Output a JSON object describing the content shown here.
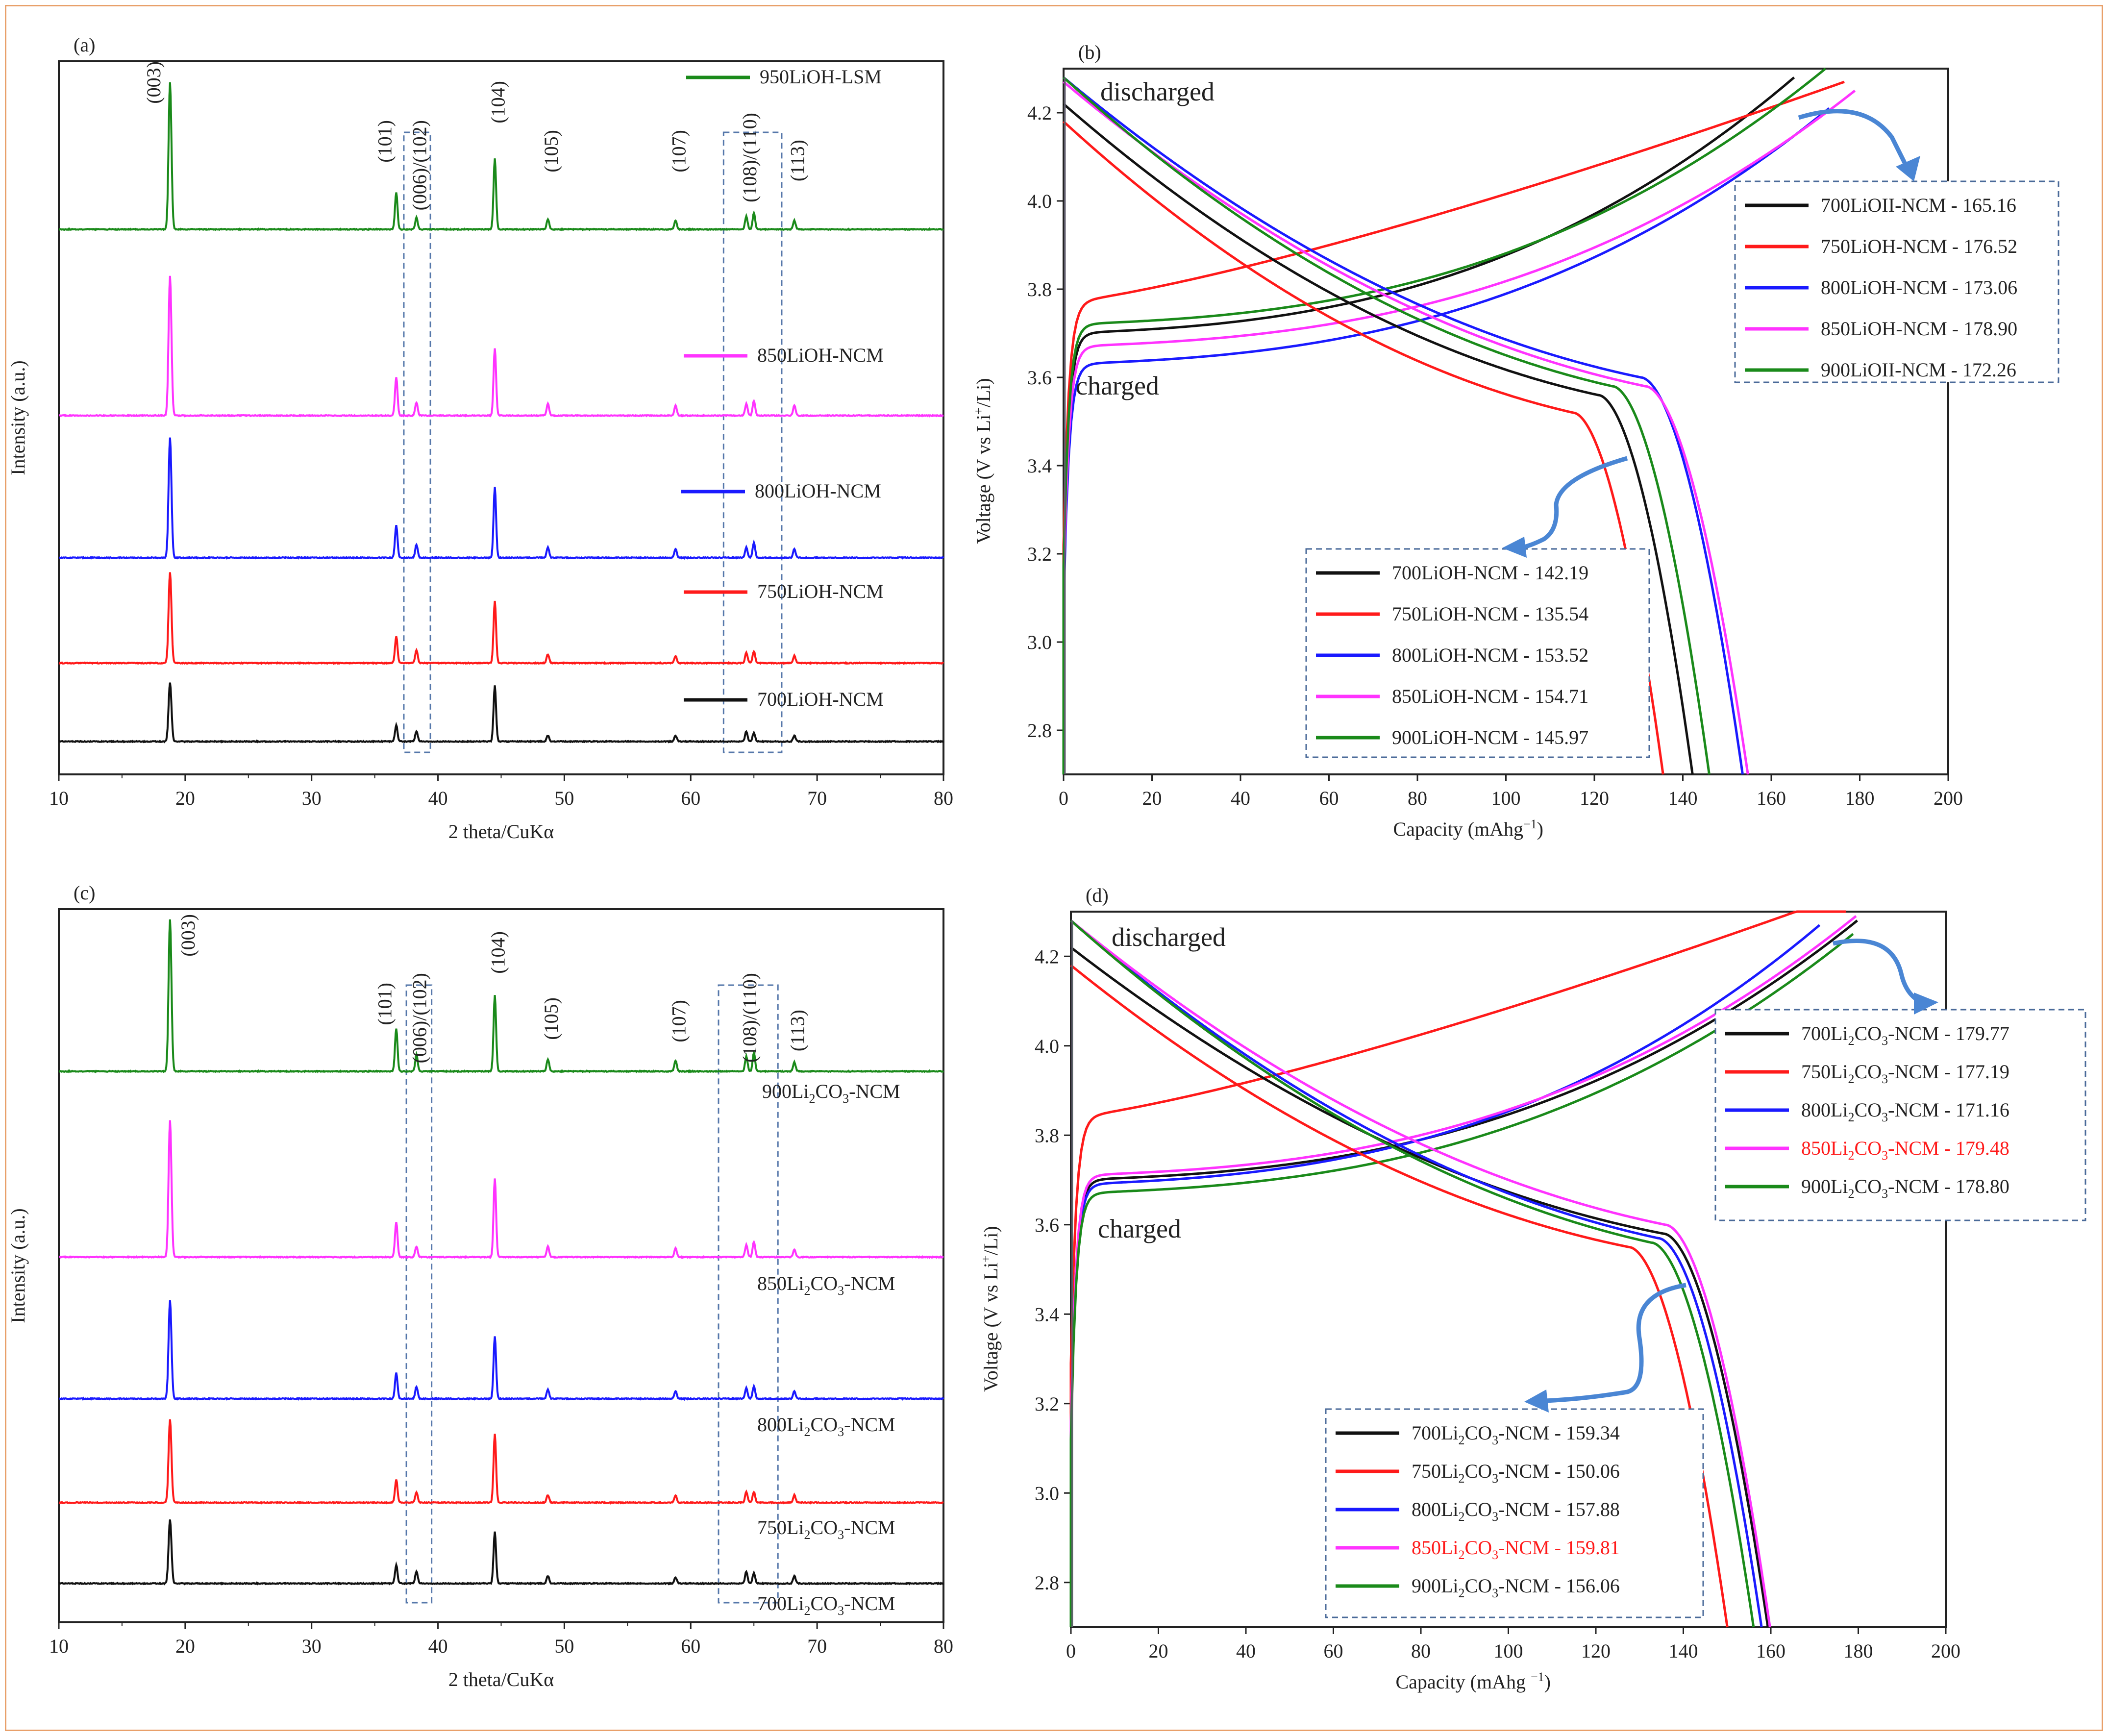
{
  "figure": {
    "border_color": "#e8a06a"
  },
  "chart_data": [
    {
      "panel": "(a)",
      "type": "line",
      "xlabel": "2 theta/CuKα",
      "ylabel": "Intensity (a.u.)",
      "xlim": [
        10,
        80
      ],
      "xticks": [
        "10",
        "20",
        "30",
        "40",
        "50",
        "60",
        "70",
        "80"
      ],
      "peaks": [
        {
          "label": "(003)",
          "x": 18.8
        },
        {
          "label": "(101)",
          "x": 36.7
        },
        {
          "label": "(006)/(102)",
          "x": 38.3
        },
        {
          "label": "(104)",
          "x": 44.5
        },
        {
          "label": "(105)",
          "x": 48.7
        },
        {
          "label": "(107)",
          "x": 58.8
        },
        {
          "label": "(108)/(110)",
          "x": 64.8
        },
        {
          "label": "(113)",
          "x": 68.2
        }
      ],
      "highlight_boxes_x": [
        [
          37.3,
          39.4
        ],
        [
          62.6,
          67.2
        ]
      ],
      "series": [
        {
          "name": "950LiOH-LSM",
          "color": "#1a8a1a",
          "intensity": {
            "003": 1.0,
            "101": 0.25,
            "102": 0.08,
            "104": 0.48,
            "105": 0.07,
            "107": 0.06,
            "108": 0.09,
            "110": 0.11,
            "113": 0.06
          }
        },
        {
          "name": "850LiOH-NCM",
          "color": "#ff33ff",
          "intensity": {
            "003": 0.95,
            "101": 0.26,
            "102": 0.09,
            "104": 0.46,
            "105": 0.08,
            "107": 0.07,
            "108": 0.08,
            "110": 0.1,
            "113": 0.07
          }
        },
        {
          "name": "800LiOH-NCM",
          "color": "#1a1aff",
          "intensity": {
            "003": 0.82,
            "101": 0.22,
            "102": 0.09,
            "104": 0.48,
            "105": 0.07,
            "107": 0.06,
            "108": 0.07,
            "110": 0.1,
            "113": 0.06
          }
        },
        {
          "name": "750LiOH-NCM",
          "color": "#ff1a1a",
          "intensity": {
            "003": 0.62,
            "101": 0.18,
            "102": 0.09,
            "104": 0.42,
            "105": 0.06,
            "107": 0.05,
            "108": 0.07,
            "110": 0.08,
            "113": 0.05
          }
        },
        {
          "name": "700LiOH-NCM",
          "color": "#111111",
          "intensity": {
            "003": 0.4,
            "101": 0.11,
            "102": 0.07,
            "104": 0.38,
            "105": 0.04,
            "107": 0.04,
            "108": 0.07,
            "110": 0.06,
            "113": 0.04
          }
        }
      ]
    },
    {
      "panel": "(b)",
      "type": "line",
      "xlabel": "Capacity (mAhg⁻¹)",
      "ylabel": "Voltage (V vs Li⁺/Li)",
      "xlim": [
        0,
        200
      ],
      "ylim": [
        2.7,
        4.3
      ],
      "xticks": [
        "0",
        "20",
        "40",
        "60",
        "80",
        "100",
        "120",
        "140",
        "160",
        "180",
        "200"
      ],
      "yticks": [
        "2.8",
        "3.0",
        "3.2",
        "3.4",
        "3.6",
        "3.8",
        "4.0",
        "4.2"
      ],
      "annotations": {
        "discharged": "discharged",
        "charged": "charged"
      },
      "legend_charge": [
        {
          "label": "700LiOII-NCM - 165.16",
          "color": "#111111",
          "text_color": "#222222"
        },
        {
          "label": "750LiOH-NCM - 176.52",
          "color": "#ff1a1a",
          "text_color": "#222222"
        },
        {
          "label": "800LiOH-NCM - 173.06",
          "color": "#1a1aff",
          "text_color": "#222222"
        },
        {
          "label": "850LiOH-NCM - 178.90",
          "color": "#ff33ff",
          "text_color": "#222222"
        },
        {
          "label": "900LiOII-NCM - 172.26",
          "color": "#1a8a1a",
          "text_color": "#222222"
        }
      ],
      "legend_discharge": [
        {
          "label": "700LiOH-NCM - 142.19",
          "color": "#111111",
          "text_color": "#222222"
        },
        {
          "label": "750LiOH-NCM - 135.54",
          "color": "#ff1a1a",
          "text_color": "#222222"
        },
        {
          "label": "800LiOH-NCM - 153.52",
          "color": "#1a1aff",
          "text_color": "#222222"
        },
        {
          "label": "850LiOH-NCM - 154.71",
          "color": "#ff33ff",
          "text_color": "#222222"
        },
        {
          "label": "900LiOH-NCM - 145.97",
          "color": "#1a8a1a",
          "text_color": "#222222"
        }
      ],
      "charge_curves": [
        {
          "name": "700LiOH-NCM",
          "color": "#111111",
          "capacity": 165.16,
          "plateau": 3.7
        },
        {
          "name": "750LiOH-NCM",
          "color": "#ff1a1a",
          "capacity": 176.52,
          "plateau": 3.77,
          "shape": "linear"
        },
        {
          "name": "800LiOH-NCM",
          "color": "#1a1aff",
          "capacity": 173.06,
          "plateau": 3.63
        },
        {
          "name": "850LiOH-NCM",
          "color": "#ff33ff",
          "capacity": 178.9,
          "plateau": 3.67
        },
        {
          "name": "900LiOH-NCM",
          "color": "#1a8a1a",
          "capacity": 172.26,
          "plateau": 3.72
        }
      ],
      "discharge_curves": [
        {
          "name": "700LiOH-NCM",
          "color": "#111111",
          "capacity": 142.19,
          "start": 4.22,
          "knee": 3.56
        },
        {
          "name": "750LiOH-NCM",
          "color": "#ff1a1a",
          "capacity": 135.54,
          "start": 4.18,
          "knee": 3.52
        },
        {
          "name": "800LiOH-NCM",
          "color": "#1a1aff",
          "capacity": 153.52,
          "start": 4.28,
          "knee": 3.6
        },
        {
          "name": "850LiOH-NCM",
          "color": "#ff33ff",
          "capacity": 154.71,
          "start": 4.27,
          "knee": 3.58
        },
        {
          "name": "900LiOH-NCM",
          "color": "#1a8a1a",
          "capacity": 145.97,
          "start": 4.28,
          "knee": 3.58
        }
      ]
    },
    {
      "panel": "(c)",
      "type": "line",
      "xlabel": "2 theta/CuKα",
      "ylabel": "Intensity (a.u.)",
      "xlim": [
        10,
        80
      ],
      "xticks": [
        "10",
        "20",
        "30",
        "40",
        "50",
        "60",
        "70",
        "80"
      ],
      "peaks": [
        {
          "label": "(003)",
          "x": 18.8
        },
        {
          "label": "(101)",
          "x": 36.7
        },
        {
          "label": "(006)/(102)",
          "x": 38.3
        },
        {
          "label": "(104)",
          "x": 44.5
        },
        {
          "label": "(105)",
          "x": 48.7
        },
        {
          "label": "(107)",
          "x": 58.8
        },
        {
          "label": "(108)/(110)",
          "x": 64.8
        },
        {
          "label": "(113)",
          "x": 68.2
        }
      ],
      "highlight_boxes_x": [
        [
          37.5,
          39.5
        ],
        [
          62.2,
          66.9
        ]
      ],
      "series": [
        {
          "name": "900Li₂CO₃-NCM",
          "color": "#1a8a1a",
          "intensity": {
            "003": 1.0,
            "101": 0.28,
            "102": 0.11,
            "104": 0.5,
            "105": 0.08,
            "107": 0.07,
            "108": 0.1,
            "110": 0.12,
            "113": 0.06
          }
        },
        {
          "name": "850Li₂CO₃-NCM",
          "color": "#ff33ff",
          "intensity": {
            "003": 0.9,
            "101": 0.23,
            "102": 0.07,
            "104": 0.52,
            "105": 0.07,
            "107": 0.06,
            "108": 0.08,
            "110": 0.1,
            "113": 0.05
          }
        },
        {
          "name": "800Li₂CO₃-NCM",
          "color": "#1a1aff",
          "intensity": {
            "003": 0.65,
            "101": 0.17,
            "102": 0.08,
            "104": 0.41,
            "105": 0.06,
            "107": 0.05,
            "108": 0.07,
            "110": 0.08,
            "113": 0.05
          }
        },
        {
          "name": "750Li₂CO₃-NCM",
          "color": "#ff1a1a",
          "intensity": {
            "003": 0.55,
            "101": 0.15,
            "102": 0.07,
            "104": 0.45,
            "105": 0.05,
            "107": 0.05,
            "108": 0.07,
            "110": 0.07,
            "113": 0.05
          }
        },
        {
          "name": "700Li₂CO₃-NCM",
          "color": "#111111",
          "intensity": {
            "003": 0.42,
            "101": 0.12,
            "102": 0.08,
            "104": 0.34,
            "105": 0.05,
            "107": 0.04,
            "108": 0.08,
            "110": 0.07,
            "113": 0.05
          }
        }
      ]
    },
    {
      "panel": "(d)",
      "type": "line",
      "xlabel": "Capacity (mAhg ⁻¹)",
      "ylabel": "Voltage (V vs Li⁺/Li)",
      "xlim": [
        0,
        200
      ],
      "ylim": [
        2.7,
        4.3
      ],
      "xticks": [
        "0",
        "20",
        "40",
        "60",
        "80",
        "100",
        "120",
        "140",
        "160",
        "180",
        "200"
      ],
      "yticks": [
        "2.8",
        "3.0",
        "3.2",
        "3.4",
        "3.6",
        "3.8",
        "4.0",
        "4.2"
      ],
      "annotations": {
        "discharged": "discharged",
        "charged": "charged"
      },
      "legend_charge": [
        {
          "label": "700Li₂CO₃-NCM - 179.77",
          "color": "#111111",
          "text_color": "#222222"
        },
        {
          "label": "750Li₂CO₃-NCM - 177.19",
          "color": "#ff1a1a",
          "text_color": "#222222"
        },
        {
          "label": "800Li₂CO₃-NCM - 171.16",
          "color": "#1a1aff",
          "text_color": "#222222"
        },
        {
          "label": "850Li₂CO₃-NCM - 179.48",
          "color": "#ff33ff",
          "text_color": "#ff1a1a"
        },
        {
          "label": "900Li₂CO₃-NCM - 178.80",
          "color": "#1a8a1a",
          "text_color": "#222222"
        }
      ],
      "legend_discharge": [
        {
          "label": "700Li₂CO₃-NCM - 159.34",
          "color": "#111111",
          "text_color": "#222222"
        },
        {
          "label": "750Li₂CO₃-NCM - 150.06",
          "color": "#ff1a1a",
          "text_color": "#222222"
        },
        {
          "label": "800Li₂CO₃-NCM - 157.88",
          "color": "#1a1aff",
          "text_color": "#222222"
        },
        {
          "label": "850Li₂CO₃-NCM - 159.81",
          "color": "#ff33ff",
          "text_color": "#ff1a1a"
        },
        {
          "label": "900Li₂CO₃-NCM - 156.06",
          "color": "#1a8a1a",
          "text_color": "#222222"
        }
      ],
      "charge_curves": [
        {
          "name": "700Li2CO3-NCM",
          "color": "#111111",
          "capacity": 179.77,
          "plateau": 3.7
        },
        {
          "name": "750Li2CO3-NCM",
          "color": "#ff1a1a",
          "capacity": 177.19,
          "plateau": 3.84,
          "shape": "linear"
        },
        {
          "name": "800Li2CO3-NCM",
          "color": "#1a1aff",
          "capacity": 171.16,
          "plateau": 3.69
        },
        {
          "name": "850Li2CO3-NCM",
          "color": "#ff33ff",
          "capacity": 179.48,
          "plateau": 3.71
        },
        {
          "name": "900Li2CO3-NCM",
          "color": "#1a8a1a",
          "capacity": 178.8,
          "plateau": 3.67
        }
      ],
      "discharge_curves": [
        {
          "name": "700Li2CO3-NCM",
          "color": "#111111",
          "capacity": 159.34,
          "start": 4.22,
          "knee": 3.58
        },
        {
          "name": "750Li2CO3-NCM",
          "color": "#ff1a1a",
          "capacity": 150.06,
          "start": 4.18,
          "knee": 3.55
        },
        {
          "name": "800Li2CO3-NCM",
          "color": "#1a1aff",
          "capacity": 157.88,
          "start": 4.28,
          "knee": 3.57
        },
        {
          "name": "850Li2CO3-NCM",
          "color": "#ff33ff",
          "capacity": 159.81,
          "start": 4.28,
          "knee": 3.6
        },
        {
          "name": "900Li2CO3-NCM",
          "color": "#1a8a1a",
          "capacity": 156.06,
          "start": 4.28,
          "knee": 3.56
        }
      ]
    }
  ]
}
